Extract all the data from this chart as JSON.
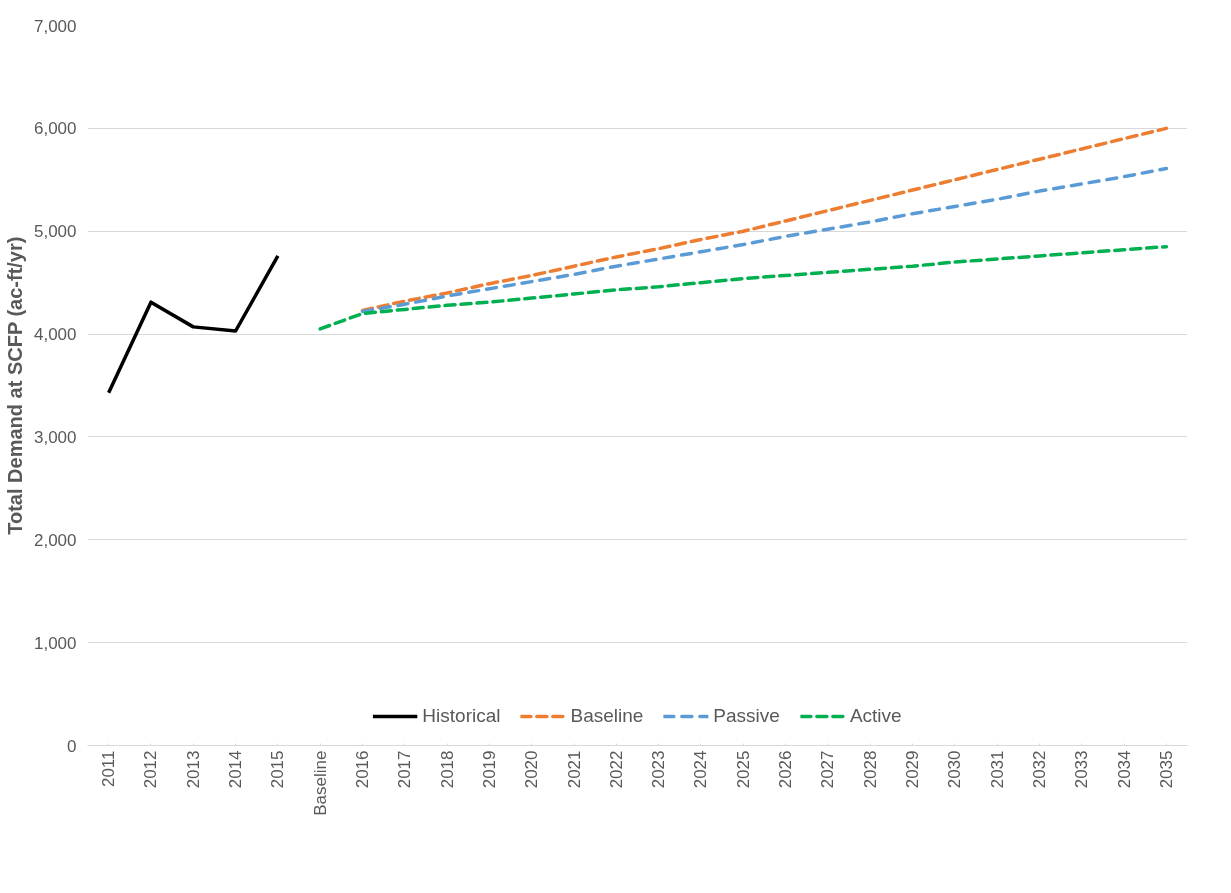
{
  "chart_data": {
    "type": "line",
    "ylabel": "Total Demand at SCFP (ac-ft/yr)",
    "categories": [
      "2011",
      "2012",
      "2013",
      "2014",
      "2015",
      "Baseline",
      "2016",
      "2017",
      "2018",
      "2019",
      "2020",
      "2021",
      "2022",
      "2023",
      "2024",
      "2025",
      "2026",
      "2027",
      "2028",
      "2029",
      "2030",
      "2031",
      "2032",
      "2033",
      "2034",
      "2035"
    ],
    "ylim": [
      0,
      7000
    ],
    "yticks": [
      {
        "value": 0,
        "label": "0"
      },
      {
        "value": 1000,
        "label": "1,000"
      },
      {
        "value": 2000,
        "label": "2,000"
      },
      {
        "value": 3000,
        "label": "3,000"
      },
      {
        "value": 4000,
        "label": "4,000"
      },
      {
        "value": 5000,
        "label": "5,000"
      },
      {
        "value": 6000,
        "label": "6,000"
      },
      {
        "value": 7000,
        "label": "7,000"
      }
    ],
    "grid": "y",
    "legend": "bottom",
    "series": [
      {
        "name": "Historical",
        "color": "#000000",
        "line_style": "solid",
        "values": [
          3430,
          4310,
          4070,
          4030,
          4760,
          null,
          null,
          null,
          null,
          null,
          null,
          null,
          null,
          null,
          null,
          null,
          null,
          null,
          null,
          null,
          null,
          null,
          null,
          null,
          null,
          null
        ]
      },
      {
        "name": "Baseline",
        "color": "#ed7d31",
        "line_style": "dashed",
        "values": [
          null,
          null,
          null,
          null,
          null,
          null,
          4230,
          4320,
          4400,
          4490,
          4570,
          4660,
          4750,
          4830,
          4920,
          5000,
          5100,
          5200,
          5300,
          5400,
          5500,
          5600,
          5700,
          5800,
          5900,
          6000
        ]
      },
      {
        "name": "Passive",
        "color": "#5b9bd5",
        "line_style": "dashed",
        "values": [
          null,
          null,
          null,
          null,
          null,
          null,
          4220,
          4290,
          4370,
          4440,
          4510,
          4580,
          4660,
          4730,
          4800,
          4870,
          4950,
          5020,
          5090,
          5170,
          5240,
          5310,
          5390,
          5460,
          5530,
          5610
        ]
      },
      {
        "name": "Active",
        "color": "#00b050",
        "line_style": "dashed",
        "values": [
          null,
          null,
          null,
          null,
          null,
          4050,
          4200,
          4240,
          4280,
          4310,
          4350,
          4390,
          4430,
          4460,
          4500,
          4540,
          4570,
          4600,
          4630,
          4660,
          4700,
          4730,
          4760,
          4790,
          4820,
          4850
        ]
      }
    ]
  }
}
